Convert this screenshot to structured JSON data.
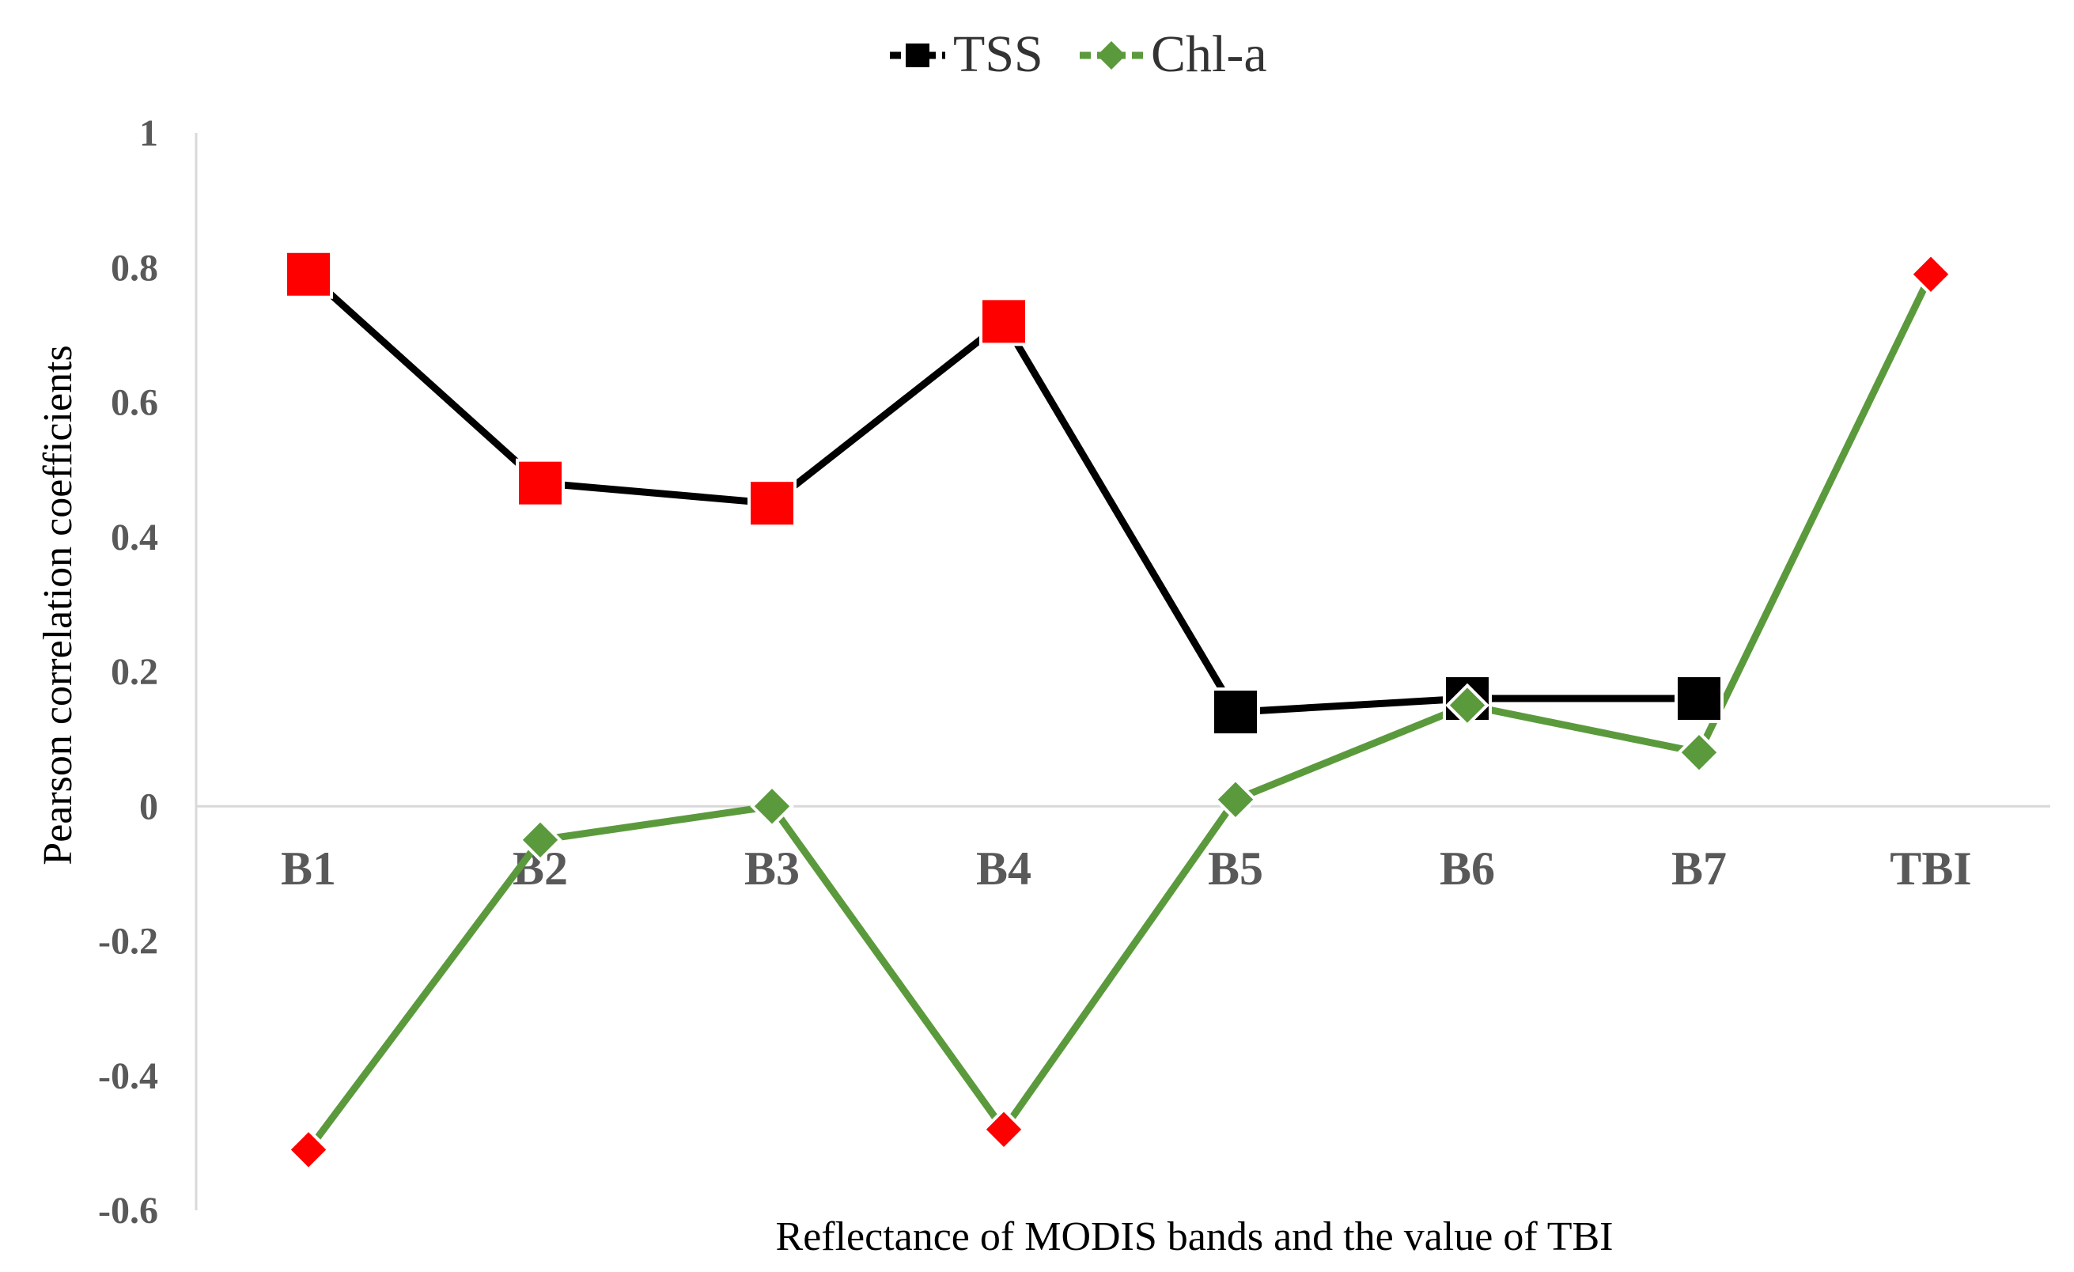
{
  "chart_data": {
    "type": "line",
    "title": "",
    "xlabel": "Reflectance of MODIS bands and the value of TBI",
    "ylabel": "Pearson correlation coefficients",
    "categories": [
      "B1",
      "B2",
      "B3",
      "B4",
      "B5",
      "B6",
      "B7",
      "TBI"
    ],
    "ylim": [
      -0.6,
      1
    ],
    "yticks": [
      1,
      0.8,
      0.6,
      0.4,
      0.2,
      0,
      -0.2,
      -0.4,
      -0.6
    ],
    "ytick_labels": [
      "1",
      "0.8",
      "0.6",
      "0.4",
      "0.2",
      "0",
      "-0.2",
      "-0.4",
      "-0.6"
    ],
    "grid": false,
    "legend_position": "top-center",
    "series": [
      {
        "name": "TSS",
        "marker": "square",
        "line_color": "#000000",
        "marker_color": "#000000",
        "values": [
          0.79,
          0.48,
          0.45,
          0.72,
          0.14,
          0.16,
          0.16,
          null
        ],
        "highlighted": [
          true,
          true,
          true,
          true,
          false,
          false,
          false,
          false
        ]
      },
      {
        "name": "Chl-a",
        "marker": "diamond",
        "line_color": "#5b9a3c",
        "marker_color": "#5b9a3c",
        "values": [
          -0.51,
          -0.05,
          0.0,
          -0.48,
          0.01,
          0.15,
          0.08,
          0.79
        ],
        "highlighted": [
          true,
          false,
          false,
          true,
          false,
          false,
          false,
          true
        ]
      }
    ],
    "highlight_color": "#ff0000"
  }
}
